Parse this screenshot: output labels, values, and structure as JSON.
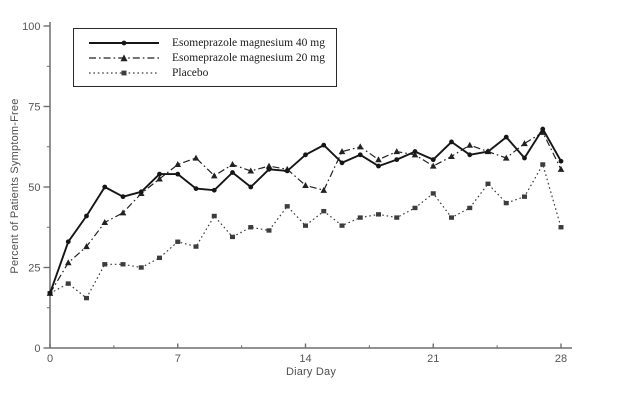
{
  "chart_data": {
    "type": "line",
    "title": "",
    "xlabel": "Diary Day",
    "ylabel": "Percent of Patients Symptom-Free",
    "x": [
      0,
      1,
      2,
      3,
      4,
      5,
      6,
      7,
      8,
      9,
      10,
      11,
      12,
      13,
      14,
      15,
      16,
      17,
      18,
      19,
      20,
      21,
      22,
      23,
      24,
      25,
      26,
      27,
      28
    ],
    "x_ticks": [
      0,
      7,
      14,
      21,
      28
    ],
    "x_minor_ticks": [
      3.5,
      10.5,
      17.5,
      24.5
    ],
    "y_ticks": [
      0,
      25,
      50,
      75,
      100
    ],
    "y_minor_ticks": [
      12.5,
      37.5,
      62.5,
      87.5
    ],
    "xlim": [
      0,
      28.6
    ],
    "ylim": [
      0,
      100
    ],
    "grid": false,
    "legend_position": "top-left-inside",
    "series": [
      {
        "name": "Esomeprazole magnesium 40 mg",
        "marker": "circle",
        "line_style": "solid",
        "color": "#161616",
        "values": [
          17,
          33,
          41,
          50,
          47,
          48.5,
          54,
          54,
          49.5,
          49,
          54.5,
          50,
          55.5,
          55,
          60,
          63,
          57.5,
          60,
          56.5,
          58.5,
          61,
          58.5,
          64,
          60,
          61,
          65.5,
          59,
          68,
          58
        ]
      },
      {
        "name": "Esomeprazole magnesium 20 mg",
        "marker": "triangle",
        "line_style": "dashdot",
        "color": "#222222",
        "values": [
          17,
          26.5,
          31.5,
          39,
          42,
          48,
          52.5,
          57,
          59,
          53.5,
          57,
          55,
          56.5,
          55.5,
          50.5,
          49,
          61,
          62.5,
          58.5,
          61,
          60,
          56.5,
          59.5,
          63,
          61,
          59,
          63.5,
          67,
          55.5
        ]
      },
      {
        "name": "Placebo",
        "marker": "square",
        "line_style": "dotted",
        "color": "#3d3d3d",
        "values": [
          17,
          20,
          15.5,
          26,
          26,
          25,
          28,
          33,
          31.5,
          41,
          34.5,
          37.5,
          36.5,
          44,
          38,
          42.5,
          38,
          40.5,
          41.5,
          40.5,
          43.5,
          48,
          40.5,
          43.5,
          51,
          45,
          47,
          57,
          37.5
        ]
      }
    ]
  },
  "colors": {
    "axis": "#6e6e6e",
    "tick_text": "#565656",
    "legend_border": "#2a2a2a",
    "background": "#ffffff"
  }
}
